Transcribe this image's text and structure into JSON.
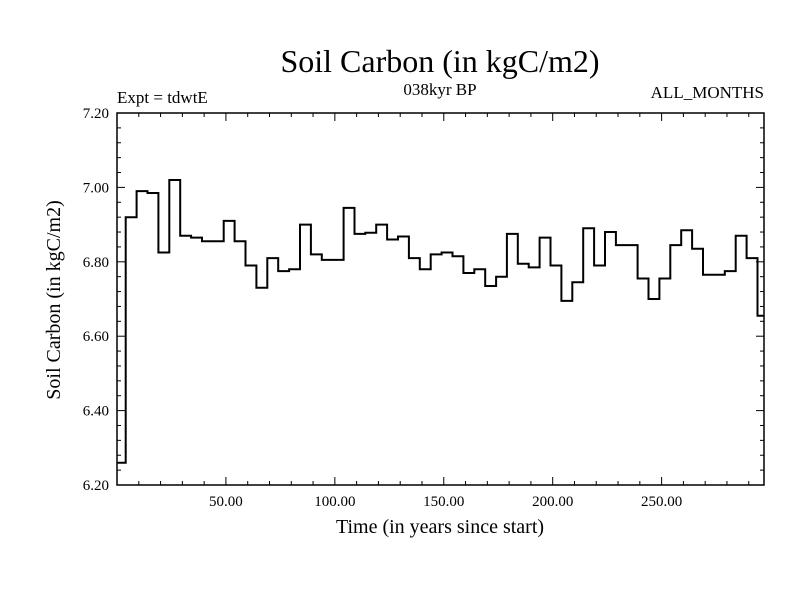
{
  "chart_data": {
    "type": "line",
    "title": "Soil Carbon (in kgC/m2)",
    "subtitle": "038kyr BP",
    "experiment_label": "Expt = tdwtE",
    "months_label": "ALL_MONTHS",
    "xlabel": "Time (in years since start)",
    "ylabel": "Soil Carbon (in kgC/m2)",
    "xlim": [
      0,
      297
    ],
    "ylim": [
      6.2,
      7.2
    ],
    "xticks": [
      50,
      100,
      150,
      200,
      250
    ],
    "xtick_labels": [
      "50.00",
      "100.00",
      "150.00",
      "200.00",
      "250.00"
    ],
    "yticks": [
      6.2,
      6.4,
      6.6,
      6.8,
      7.0,
      7.2
    ],
    "ytick_labels": [
      "6.20",
      "6.40",
      "6.60",
      "6.80",
      "7.00",
      "7.20"
    ],
    "grid": false,
    "step": true,
    "series": [
      {
        "name": "Soil Carbon",
        "x": [
          0,
          4,
          9,
          14,
          19,
          24,
          29,
          34,
          39,
          44,
          49,
          54,
          59,
          64,
          69,
          74,
          79,
          84,
          89,
          94,
          99,
          104,
          109,
          114,
          119,
          124,
          129,
          134,
          139,
          144,
          149,
          154,
          159,
          164,
          169,
          174,
          179,
          184,
          189,
          194,
          199,
          204,
          209,
          214,
          219,
          224,
          229,
          234,
          239,
          244,
          249,
          254,
          259,
          264,
          269,
          274,
          279,
          284,
          289,
          294,
          297
        ],
        "values": [
          6.26,
          6.92,
          6.99,
          6.985,
          6.825,
          7.02,
          6.87,
          6.865,
          6.855,
          6.855,
          6.91,
          6.855,
          6.79,
          6.73,
          6.81,
          6.775,
          6.78,
          6.9,
          6.82,
          6.805,
          6.805,
          6.945,
          6.875,
          6.878,
          6.9,
          6.86,
          6.868,
          6.81,
          6.78,
          6.82,
          6.825,
          6.815,
          6.77,
          6.78,
          6.735,
          6.76,
          6.875,
          6.795,
          6.785,
          6.865,
          6.79,
          6.695,
          6.745,
          6.89,
          6.79,
          6.88,
          6.845,
          6.845,
          6.755,
          6.7,
          6.755,
          6.845,
          6.885,
          6.835,
          6.765,
          6.765,
          6.775,
          6.87,
          6.81,
          6.655,
          6.655
        ]
      }
    ]
  }
}
